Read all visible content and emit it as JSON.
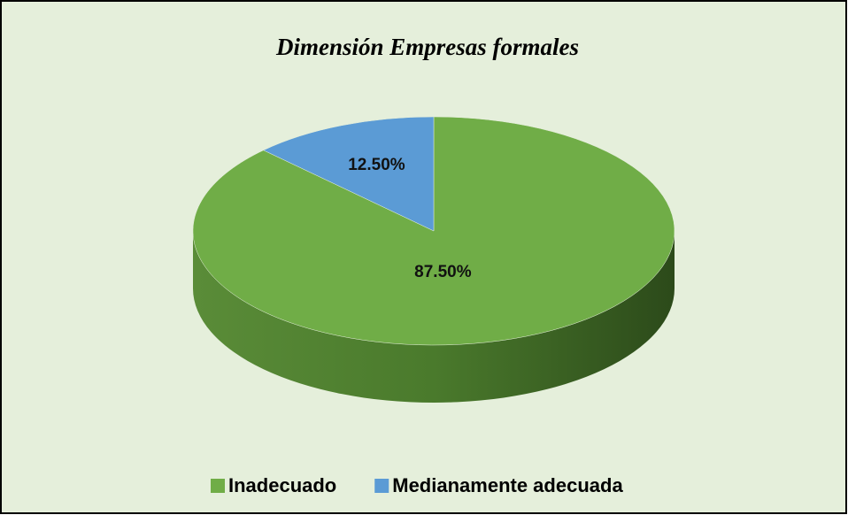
{
  "chart_data": {
    "type": "pie",
    "title": "Dimensión Empresas formales",
    "categories": [
      "Inadecuado",
      "Medianamente adecuada"
    ],
    "values": [
      87.5,
      12.5
    ],
    "value_labels": [
      "87.50%",
      "12.50%"
    ],
    "colors": [
      "#70ad47",
      "#5b9bd5"
    ],
    "legend": "bottom"
  }
}
